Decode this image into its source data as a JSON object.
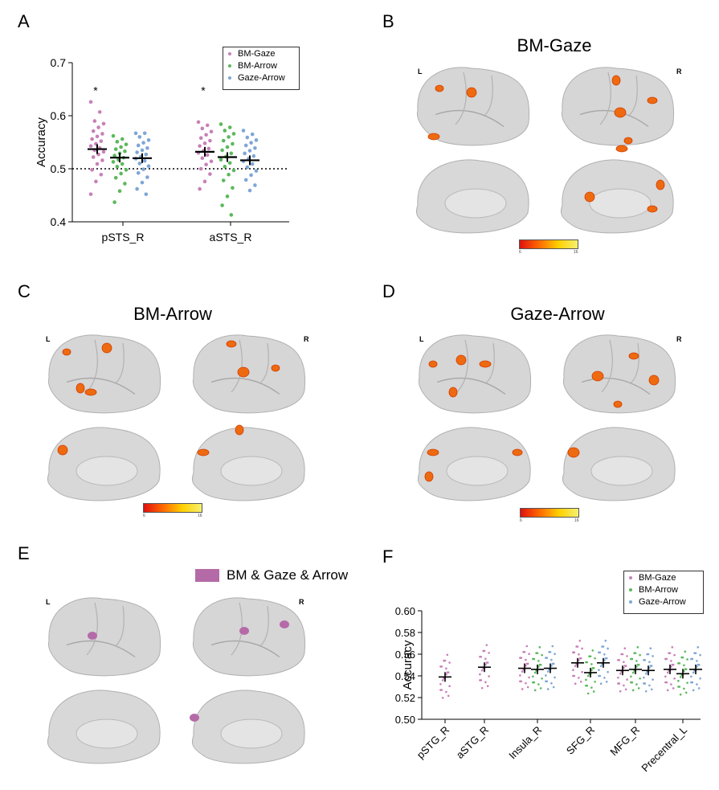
{
  "panels": {
    "A": {
      "letter": "A"
    },
    "B": {
      "letter": "B",
      "title": "BM-Gaze",
      "left": "L",
      "right": "R",
      "cbar_min": "6",
      "cbar_max": "16"
    },
    "C": {
      "letter": "C",
      "title": "BM-Arrow",
      "left": "L",
      "right": "R",
      "cbar_min": "6",
      "cbar_max": "16"
    },
    "D": {
      "letter": "D",
      "title": "Gaze-Arrow",
      "left": "L",
      "right": "R",
      "cbar_min": "6",
      "cbar_max": "16"
    },
    "E": {
      "letter": "E",
      "legend": "BM & Gaze & Arrow",
      "left": "L",
      "right": "R"
    },
    "F": {
      "letter": "F"
    }
  },
  "colors": {
    "bm_gaze": "#c880b8",
    "bm_arrow": "#5cb85c",
    "gaze_arrow": "#7ea6d6",
    "overlap": "#b56aa8",
    "activation": "#ee6a10"
  },
  "chart_data": [
    {
      "type": "scatter",
      "ylabel": "Accuracy",
      "ylim": [
        0.4,
        0.7
      ],
      "yticks": [
        "0.4",
        "0.5",
        "0.6",
        "0.7"
      ],
      "categories": [
        "pSTS_R",
        "aSTS_R"
      ],
      "chance": 0.5,
      "annotations": [
        "*",
        "*"
      ],
      "legend_position": "top-right",
      "series": [
        {
          "name": "BM-Gaze",
          "mean": [
            0.537,
            0.532
          ],
          "points": [
            [
              0.626,
              0.607,
              0.59,
              0.585,
              0.578,
              0.571,
              0.566,
              0.561,
              0.556,
              0.552,
              0.547,
              0.543,
              0.539,
              0.535,
              0.532,
              0.527,
              0.522,
              0.516,
              0.509,
              0.498,
              0.489,
              0.476,
              0.452
            ],
            [
              0.588,
              0.582,
              0.576,
              0.57,
              0.564,
              0.558,
              0.553,
              0.548,
              0.543,
              0.538,
              0.534,
              0.53,
              0.526,
              0.52,
              0.514,
              0.508,
              0.5,
              0.49,
              0.476,
              0.462
            ]
          ]
        },
        {
          "name": "BM-Arrow",
          "mean": [
            0.521,
            0.522
          ],
          "points": [
            [
              0.562,
              0.556,
              0.551,
              0.546,
              0.541,
              0.537,
              0.533,
              0.529,
              0.525,
              0.521,
              0.517,
              0.513,
              0.509,
              0.504,
              0.498,
              0.491,
              0.483,
              0.472,
              0.458,
              0.437
            ],
            [
              0.584,
              0.578,
              0.572,
              0.566,
              0.56,
              0.553,
              0.547,
              0.541,
              0.535,
              0.529,
              0.523,
              0.517,
              0.511,
              0.504,
              0.497,
              0.489,
              0.478,
              0.464,
              0.448,
              0.431,
              0.413
            ]
          ]
        },
        {
          "name": "Gaze-Arrow",
          "mean": [
            0.52,
            0.516
          ],
          "points": [
            [
              0.567,
              0.567,
              0.56,
              0.554,
              0.549,
              0.544,
              0.539,
              0.535,
              0.531,
              0.527,
              0.523,
              0.519,
              0.515,
              0.51,
              0.505,
              0.499,
              0.492,
              0.484,
              0.474,
              0.462,
              0.452
            ],
            [
              0.572,
              0.565,
              0.559,
              0.554,
              0.549,
              0.544,
              0.539,
              0.534,
              0.529,
              0.524,
              0.519,
              0.514,
              0.509,
              0.503,
              0.496,
              0.488,
              0.479,
              0.469,
              0.459
            ]
          ]
        }
      ]
    },
    {
      "type": "scatter",
      "ylabel": "Accuracy",
      "ylim": [
        0.5,
        0.6
      ],
      "yticks": [
        "0.50",
        "0.52",
        "0.54",
        "0.56",
        "0.58",
        "0.60"
      ],
      "categories": [
        "pSTG_R",
        "aSTG_R",
        "Insula_R",
        "SFG_R",
        "MFG_R",
        "Precentral_L"
      ],
      "legend_position": "top-right",
      "series": [
        {
          "name": "BM-Gaze",
          "mean": [
            0.539,
            0.548,
            0.547,
            0.552,
            0.545,
            0.546
          ]
        },
        {
          "name": "BM-Arrow",
          "mean": [
            null,
            null,
            0.546,
            0.543,
            0.546,
            0.542
          ]
        },
        {
          "name": "Gaze-Arrow",
          "mean": [
            null,
            null,
            0.547,
            0.552,
            0.545,
            0.546
          ]
        }
      ]
    }
  ]
}
